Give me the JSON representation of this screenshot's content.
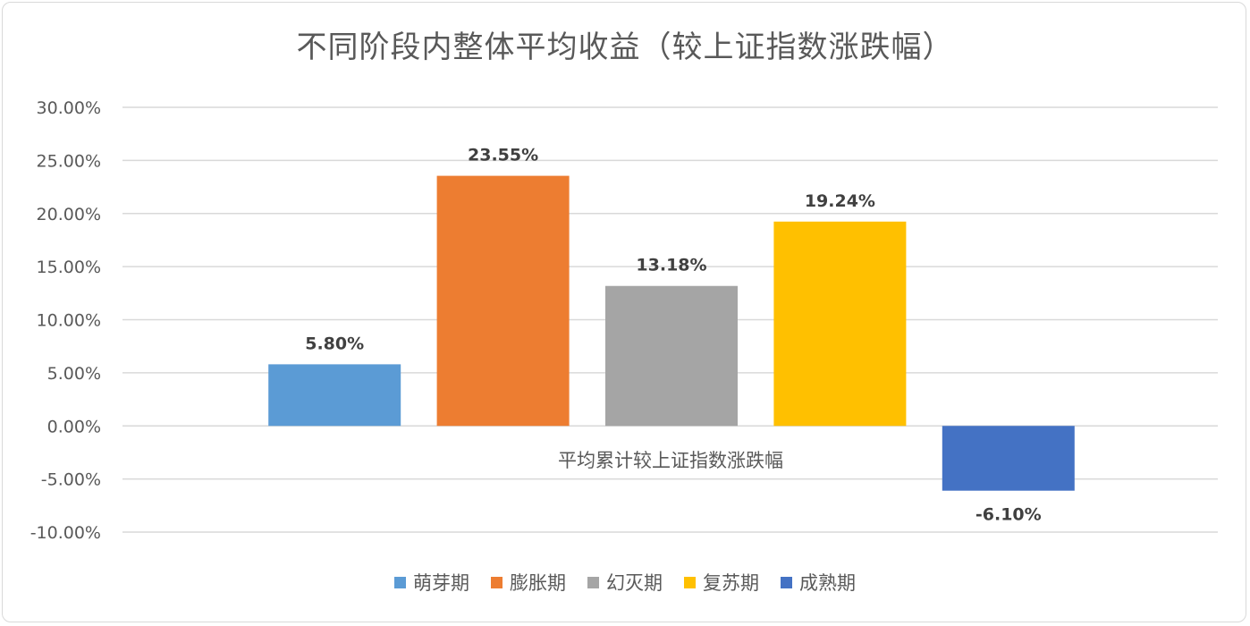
{
  "chart_data": {
    "type": "bar",
    "title": "不同阶段内整体平均收益（较上证指数涨跌幅）",
    "xlabel": "平均累计较上证指数涨跌幅",
    "ylabel": "",
    "ylim": [
      -0.1,
      0.3
    ],
    "yticks": [
      0.3,
      0.25,
      0.2,
      0.15,
      0.1,
      0.05,
      0.0,
      -0.05,
      -0.1
    ],
    "ytick_labels": [
      "30.00%",
      "25.00%",
      "20.00%",
      "15.00%",
      "10.00%",
      "5.00%",
      "0.00%",
      "-5.00%",
      "-10.00%"
    ],
    "grid": true,
    "legend_position": "bottom",
    "series": [
      {
        "name": "萌芽期",
        "value": 0.058,
        "label": "5.80%",
        "color": "#5b9bd5"
      },
      {
        "name": "膨胀期",
        "value": 0.2355,
        "label": "23.55%",
        "color": "#ed7d31"
      },
      {
        "name": "幻灭期",
        "value": 0.1318,
        "label": "13.18%",
        "color": "#a5a5a5"
      },
      {
        "name": "复苏期",
        "value": 0.1924,
        "label": "19.24%",
        "color": "#ffc000"
      },
      {
        "name": "成熟期",
        "value": -0.061,
        "label": "-6.10%",
        "color": "#4472c4"
      }
    ]
  }
}
